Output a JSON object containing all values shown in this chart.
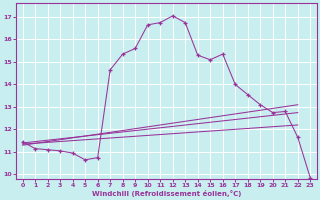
{
  "xlabel": "Windchill (Refroidissement éolien,°C)",
  "background_color": "#c8eef0",
  "grid_color": "#ffffff",
  "line_color": "#993399",
  "xlim": [
    -0.5,
    23.5
  ],
  "ylim": [
    9.8,
    17.6
  ],
  "xticks": [
    0,
    1,
    2,
    3,
    4,
    5,
    6,
    7,
    8,
    9,
    10,
    11,
    12,
    13,
    14,
    15,
    16,
    17,
    18,
    19,
    20,
    21,
    22,
    23
  ],
  "yticks": [
    10,
    11,
    12,
    13,
    14,
    15,
    16,
    17
  ],
  "curve_x": [
    0,
    1,
    2,
    3,
    4,
    5,
    6,
    7,
    8,
    9,
    10,
    11,
    12,
    13,
    14,
    15,
    16,
    17,
    18,
    19,
    20,
    21,
    22,
    23
  ],
  "curve_y": [
    11.45,
    11.15,
    11.1,
    11.05,
    10.95,
    10.65,
    10.75,
    14.65,
    15.35,
    15.6,
    16.65,
    16.75,
    17.05,
    16.75,
    15.3,
    15.1,
    15.35,
    14.0,
    13.55,
    13.1,
    12.75,
    12.8,
    11.65,
    9.85
  ],
  "line1_x": [
    0,
    22
  ],
  "line1_y": [
    11.4,
    12.75
  ],
  "line2_x": [
    0,
    22
  ],
  "line2_y": [
    11.35,
    12.2
  ],
  "line3_x": [
    0,
    22
  ],
  "line3_y": [
    11.3,
    13.1
  ]
}
